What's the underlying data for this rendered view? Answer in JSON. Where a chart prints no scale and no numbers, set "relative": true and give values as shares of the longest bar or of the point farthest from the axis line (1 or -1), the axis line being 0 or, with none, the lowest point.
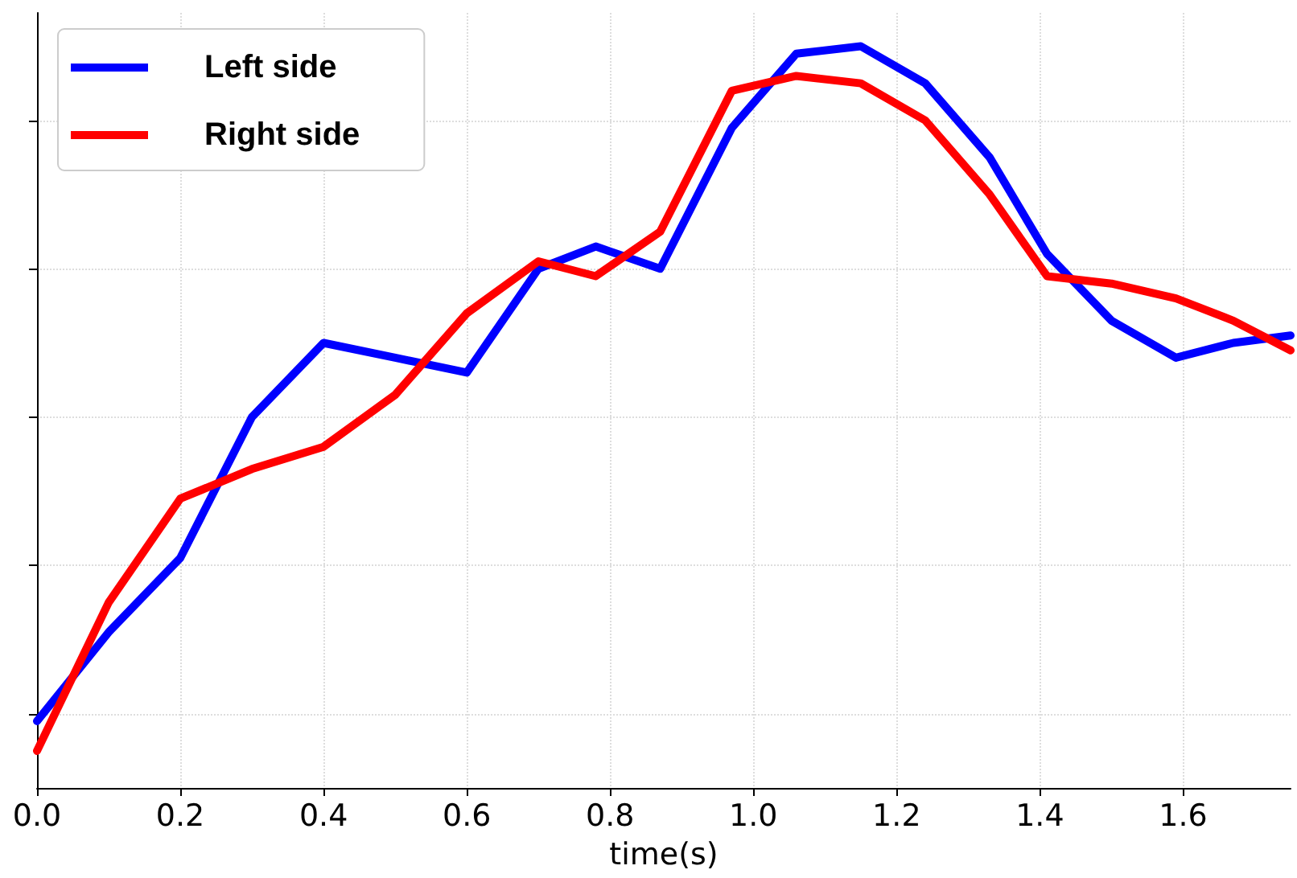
{
  "chart_data": {
    "type": "line",
    "xlabel": "time(s)",
    "relative": true,
    "tick_labels": "x",
    "grid": true,
    "legend": "top left",
    "marker": "none",
    "line_style": "solid",
    "x": [
      0,
      0.1,
      0.2,
      0.3,
      0.4,
      0.5,
      0.6,
      0.7,
      0.78,
      0.87,
      0.97,
      1.06,
      1.15,
      1.24,
      1.33,
      1.41,
      1.5,
      1.59,
      1.67,
      1.75
    ],
    "xlim": [
      0,
      1.75
    ],
    "xticks": [
      {
        "value": 0,
        "label": "0.0"
      },
      {
        "value": 0.2,
        "label": "0.2"
      },
      {
        "value": 0.4,
        "label": "0.4"
      },
      {
        "value": 0.6,
        "label": "0.6"
      },
      {
        "value": 0.8,
        "label": "0.8"
      },
      {
        "value": 1.0,
        "label": "1.0"
      },
      {
        "value": 1.2,
        "label": "1.2"
      },
      {
        "value": 1.4,
        "label": "1.4"
      },
      {
        "value": 1.6,
        "label": "1.6"
      }
    ],
    "series": [
      {
        "name": "Left side",
        "color": "#0000ff",
        "values": [
          0.09,
          0.21,
          0.31,
          0.5,
          0.6,
          0.58,
          0.56,
          0.7,
          0.73,
          0.7,
          0.89,
          0.99,
          1.0,
          0.95,
          0.85,
          0.72,
          0.63,
          0.58,
          0.6,
          0.61
        ]
      },
      {
        "name": "Right side",
        "color": "#ff0000",
        "values": [
          0.05,
          0.25,
          0.39,
          0.43,
          0.46,
          0.53,
          0.64,
          0.71,
          0.69,
          0.75,
          0.94,
          0.96,
          0.95,
          0.9,
          0.8,
          0.69,
          0.68,
          0.66,
          0.63,
          0.59
        ]
      }
    ]
  }
}
